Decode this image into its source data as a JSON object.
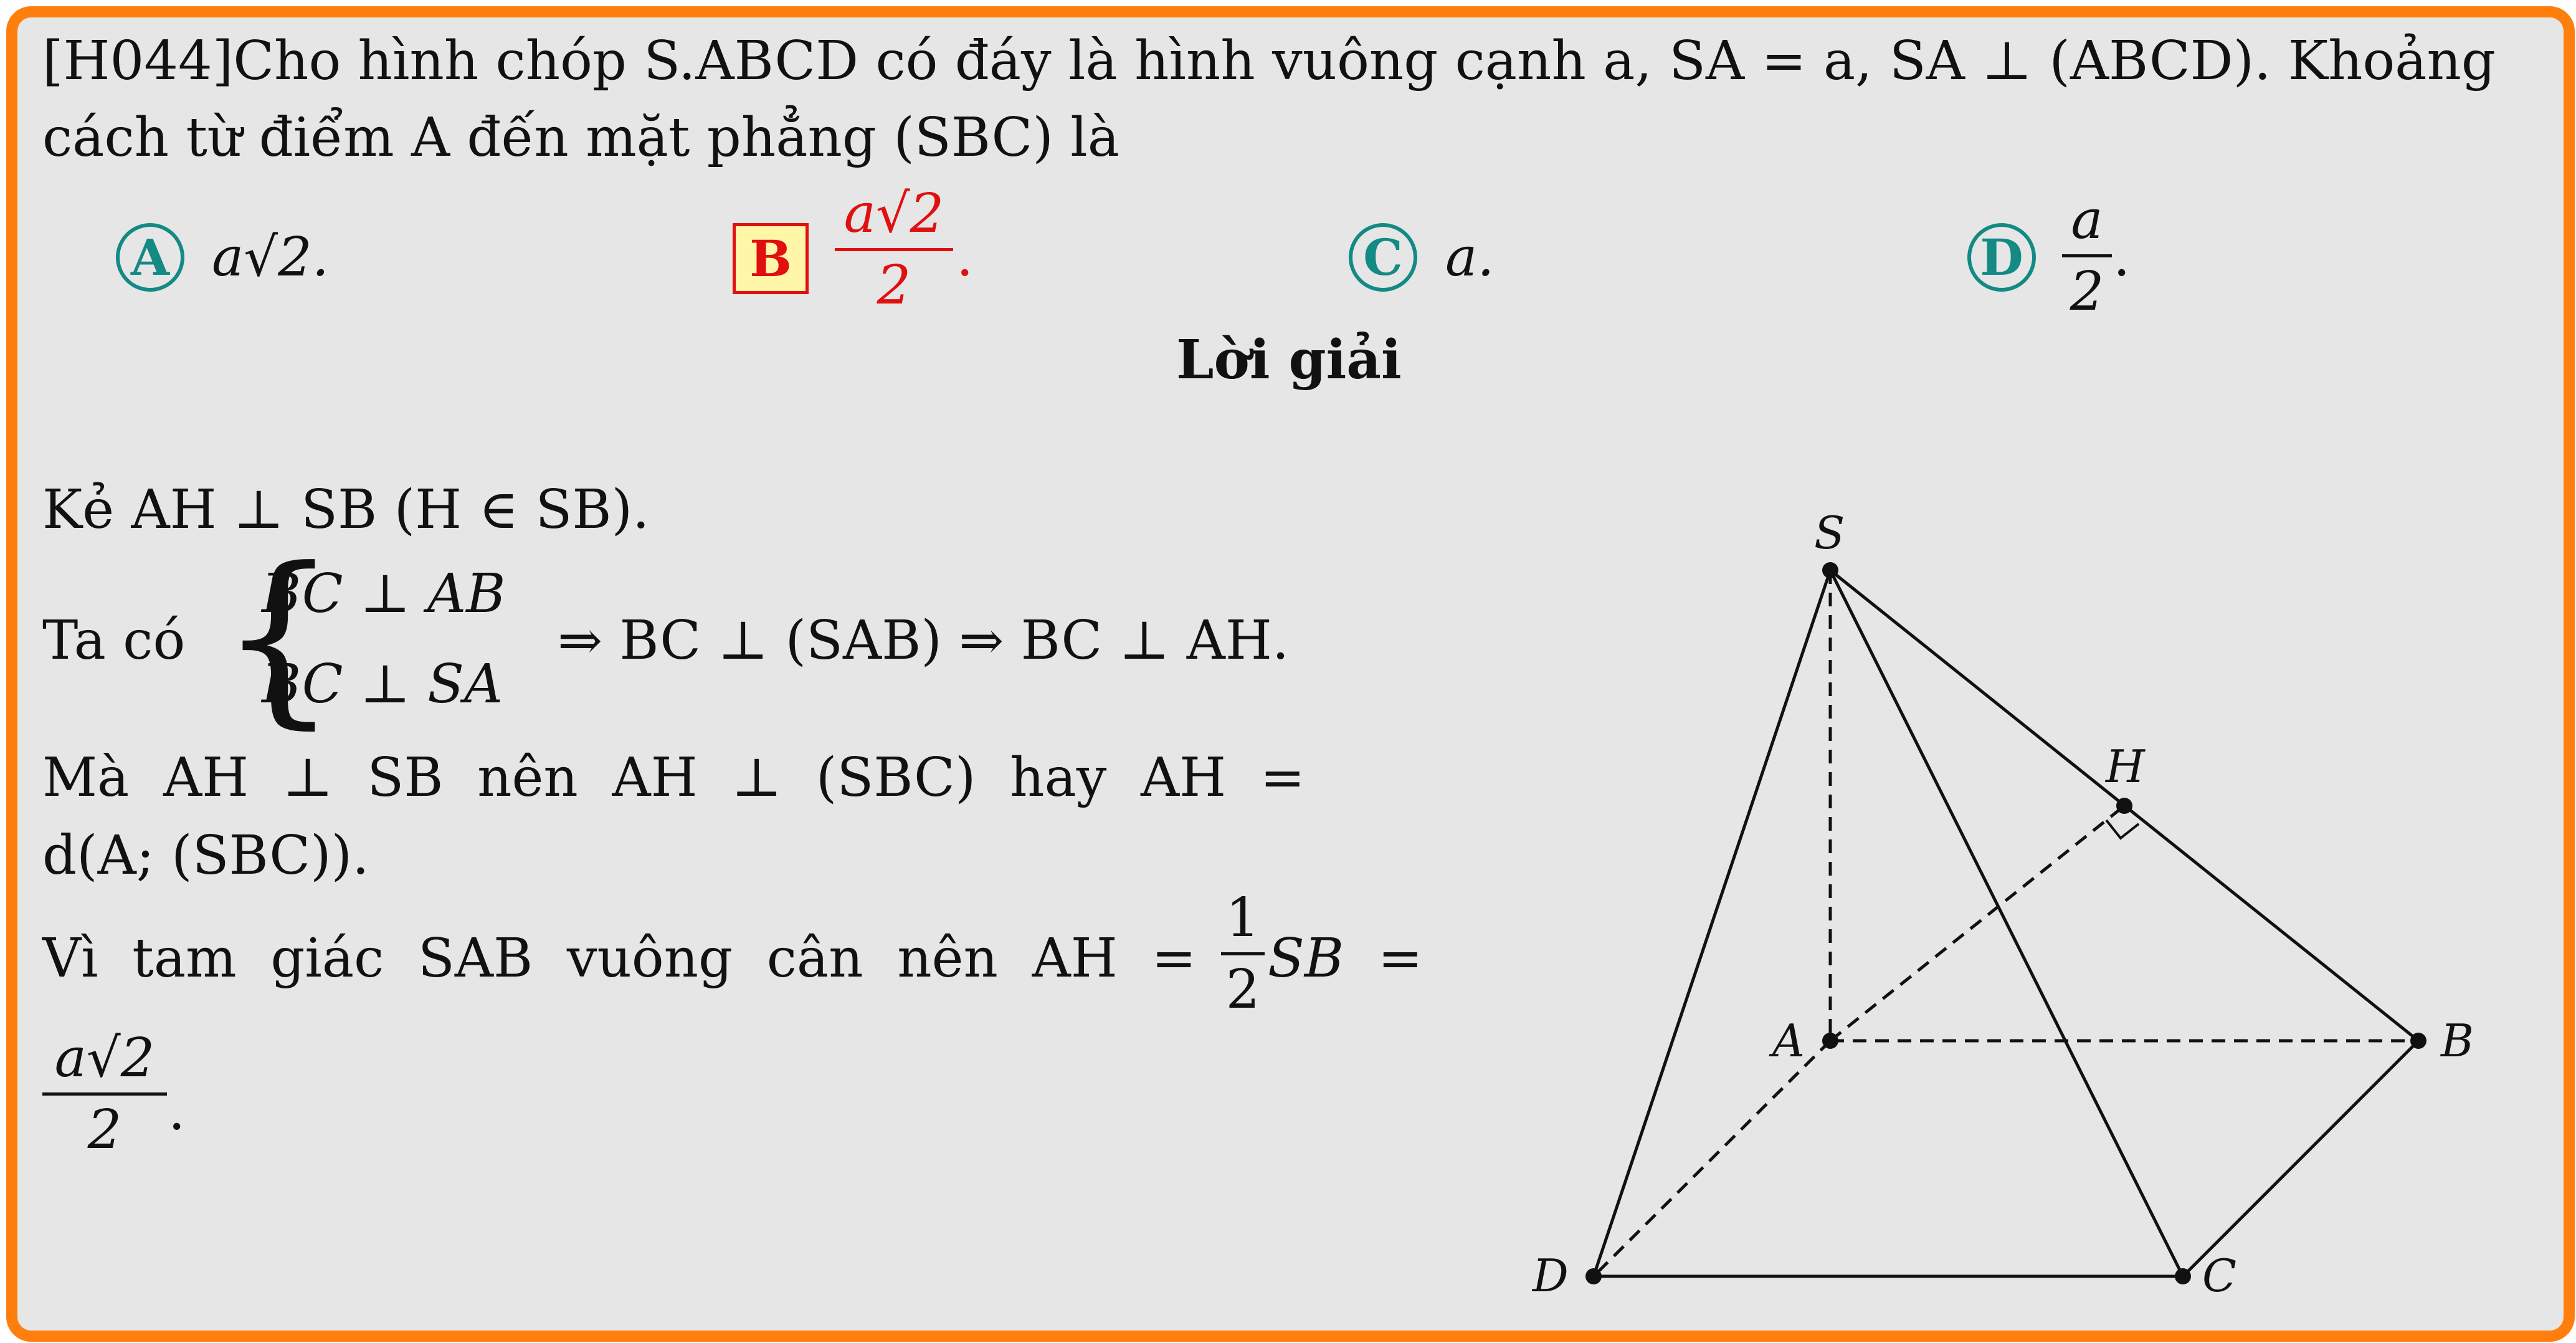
{
  "problem": {
    "line1": "[H044]Cho hình chóp S.ABCD có đáy là hình vuông cạnh a, SA = a, SA ⊥ (ABCD). Khoảng",
    "line2": "cách từ điểm A đến mặt phẳng (SBC) là"
  },
  "options": [
    {
      "letter": "A",
      "text": "a√2."
    },
    {
      "letter": "B",
      "numerator": "a√2",
      "denominator": "2",
      "suffix": ".",
      "correct": true
    },
    {
      "letter": "C",
      "text": "a."
    },
    {
      "letter": "D",
      "numerator": "a",
      "denominator": "2",
      "suffix": "."
    }
  ],
  "solution": {
    "title": "Lời giải",
    "line1": "Kẻ AH ⊥ SB (H ∈ SB).",
    "line2_prefix": "Ta có",
    "system": [
      "BC ⊥ AB",
      "BC ⊥ SA"
    ],
    "line2_suffix": "⇒ BC ⊥ (SAB) ⇒ BC ⊥ AH.",
    "line3": "Mà  AH  ⊥  SB  nên  AH  ⊥  (SBC)  hay  AH  =",
    "line4": "d(A; (SBC)).",
    "line5_prefix": "Vì  tam  giác  SAB  vuông  cân  nên  AH  =",
    "line5_frac": {
      "numerator": "1",
      "denominator": "2"
    },
    "line5_suffix": "SB  =",
    "result": {
      "numerator": "a√2",
      "denominator": "2",
      "suffix": "."
    }
  },
  "figure": {
    "labels": {
      "S": "S",
      "H": "H",
      "A": "A",
      "B": "B",
      "C": "C",
      "D": "D"
    }
  },
  "colors": {
    "border": "#ff7f0e",
    "background": "#e6e6e6",
    "option_circle": "#138a84",
    "correct": "#e01010",
    "correct_fill": "#fff6a8"
  }
}
